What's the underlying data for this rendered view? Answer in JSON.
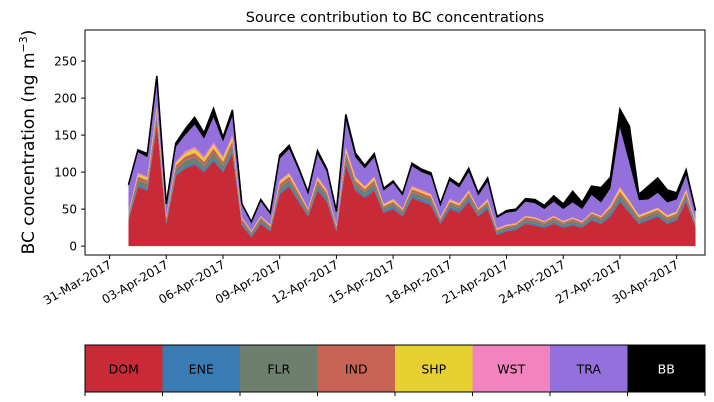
{
  "chart_data": {
    "type": "area",
    "stacked": true,
    "title": "Source contribution to BC concentrations",
    "ylabel": "BC concentration (ng m",
    "ylabel_unit_exponent": "−3",
    "ylabel_close": ")",
    "ylim": [
      -12,
      292
    ],
    "yticks": [
      0,
      50,
      100,
      150,
      200,
      250
    ],
    "xlim_days": [
      -1.3,
      31.5
    ],
    "xtick_days": [
      0,
      3,
      6,
      9,
      12,
      15,
      18,
      21,
      24,
      27,
      30
    ],
    "xtick_labels": [
      "31-Mar-2017",
      "03-Apr-2017",
      "06-Apr-2017",
      "09-Apr-2017",
      "12-Apr-2017",
      "15-Apr-2017",
      "18-Apr-2017",
      "21-Apr-2017",
      "24-Apr-2017",
      "27-Apr-2017",
      "30-Apr-2017"
    ],
    "x_days": [
      1.0,
      1.5,
      2.0,
      2.5,
      3.0,
      3.5,
      4.0,
      4.5,
      5.0,
      5.5,
      6.0,
      6.5,
      7.0,
      7.5,
      8.0,
      8.5,
      9.0,
      9.5,
      10.0,
      10.5,
      11.0,
      11.5,
      12.0,
      12.5,
      13.0,
      13.5,
      14.0,
      14.5,
      15.0,
      15.5,
      16.0,
      16.5,
      17.0,
      17.5,
      18.0,
      18.5,
      19.0,
      19.5,
      20.0,
      20.5,
      21.0,
      21.5,
      22.0,
      22.5,
      23.0,
      23.5,
      24.0,
      24.5,
      25.0,
      25.5,
      26.0,
      26.5,
      27.0,
      27.5,
      28.0,
      28.5,
      29.0,
      29.5,
      30.0,
      30.5,
      31.0
    ],
    "series": [
      {
        "name": "DOM",
        "color": "#c82b37",
        "values": [
          35,
          80,
          75,
          165,
          30,
          95,
          105,
          110,
          100,
          115,
          100,
          125,
          28,
          12,
          30,
          20,
          70,
          80,
          60,
          40,
          75,
          60,
          20,
          110,
          75,
          65,
          75,
          45,
          50,
          40,
          65,
          60,
          55,
          30,
          50,
          45,
          60,
          40,
          50,
          15,
          20,
          22,
          30,
          28,
          25,
          30,
          25,
          28,
          25,
          35,
          30,
          40,
          60,
          45,
          30,
          35,
          40,
          30,
          35,
          60,
          25
        ]
      },
      {
        "name": "ENE",
        "color": "#3a7bb5",
        "values": [
          2,
          3,
          3,
          3,
          2,
          3,
          3,
          3,
          3,
          3,
          3,
          3,
          2,
          2,
          2,
          2,
          3,
          3,
          3,
          2,
          3,
          3,
          2,
          3,
          3,
          3,
          3,
          2,
          3,
          2,
          3,
          3,
          3,
          2,
          3,
          3,
          3,
          2,
          3,
          2,
          2,
          2,
          2,
          2,
          2,
          2,
          2,
          2,
          2,
          2,
          2,
          3,
          3,
          3,
          2,
          2,
          2,
          2,
          2,
          3,
          2
        ]
      },
      {
        "name": "FLR",
        "color": "#6d7f6e",
        "values": [
          4,
          6,
          6,
          8,
          4,
          6,
          7,
          7,
          6,
          8,
          6,
          8,
          4,
          3,
          4,
          3,
          6,
          6,
          5,
          4,
          6,
          5,
          3,
          8,
          6,
          5,
          6,
          4,
          4,
          4,
          5,
          5,
          5,
          3,
          4,
          4,
          5,
          4,
          4,
          3,
          3,
          3,
          4,
          4,
          3,
          4,
          3,
          4,
          3,
          4,
          4,
          5,
          6,
          5,
          4,
          4,
          4,
          4,
          4,
          5,
          3
        ]
      },
      {
        "name": "IND",
        "color": "#c86454",
        "values": [
          3,
          5,
          5,
          6,
          3,
          5,
          6,
          6,
          5,
          6,
          5,
          6,
          3,
          2,
          3,
          2,
          5,
          5,
          4,
          3,
          5,
          4,
          2,
          6,
          5,
          4,
          5,
          3,
          3,
          3,
          4,
          4,
          4,
          2,
          3,
          3,
          4,
          3,
          3,
          2,
          2,
          2,
          3,
          3,
          2,
          3,
          2,
          3,
          2,
          3,
          3,
          4,
          5,
          4,
          3,
          3,
          3,
          3,
          3,
          4,
          2
        ]
      },
      {
        "name": "SHP",
        "color": "#e6d12f",
        "values": [
          1,
          3,
          3,
          5,
          1,
          3,
          4,
          5,
          4,
          5,
          4,
          5,
          1,
          1,
          1,
          1,
          3,
          3,
          2,
          1,
          3,
          2,
          1,
          4,
          3,
          2,
          3,
          2,
          2,
          1,
          2,
          2,
          2,
          1,
          2,
          2,
          2,
          1,
          2,
          1,
          1,
          1,
          1,
          1,
          1,
          1,
          1,
          1,
          1,
          1,
          1,
          2,
          4,
          3,
          2,
          2,
          2,
          2,
          2,
          3,
          1
        ]
      },
      {
        "name": "WST",
        "color": "#f183bf",
        "values": [
          1,
          2,
          2,
          3,
          1,
          2,
          3,
          3,
          3,
          3,
          3,
          3,
          1,
          1,
          1,
          1,
          2,
          2,
          2,
          1,
          2,
          2,
          1,
          3,
          2,
          2,
          2,
          1,
          2,
          1,
          2,
          2,
          2,
          1,
          2,
          1,
          2,
          1,
          2,
          1,
          1,
          1,
          1,
          1,
          1,
          1,
          1,
          1,
          1,
          1,
          1,
          2,
          2,
          2,
          1,
          1,
          1,
          1,
          1,
          2,
          1
        ]
      },
      {
        "name": "TRA",
        "color": "#9370db",
        "values": [
          34,
          28,
          26,
          30,
          14,
          20,
          22,
          30,
          24,
          34,
          20,
          26,
          16,
          11,
          19,
          14,
          29,
          32,
          26,
          19,
          30,
          24,
          16,
          36,
          26,
          24,
          26,
          18,
          21,
          17,
          27,
          24,
          24,
          15,
          24,
          21,
          24,
          17,
          23,
          14,
          16,
          16,
          19,
          19,
          16,
          19,
          16,
          20,
          16,
          23,
          18,
          22,
          80,
          50,
          20,
          16,
          20,
          17,
          16,
          18,
          12
        ]
      },
      {
        "name": "BB",
        "color": "#000000",
        "values": [
          3,
          3,
          5,
          10,
          2,
          5,
          8,
          10,
          8,
          12,
          6,
          8,
          2,
          1,
          3,
          2,
          5,
          5,
          4,
          3,
          5,
          4,
          2,
          8,
          6,
          4,
          5,
          3,
          3,
          3,
          4,
          4,
          4,
          3,
          4,
          4,
          5,
          4,
          5,
          2,
          3,
          3,
          4,
          5,
          5,
          8,
          7,
          15,
          9,
          12,
          20,
          15,
          25,
          50,
          8,
          18,
          20,
          17,
          9,
          8,
          2
        ]
      }
    ]
  },
  "legend": {
    "items": [
      {
        "label": "DOM",
        "color": "#c82b37",
        "text_color": "#000000"
      },
      {
        "label": "ENE",
        "color": "#3a7bb5",
        "text_color": "#000000"
      },
      {
        "label": "FLR",
        "color": "#6d7f6e",
        "text_color": "#000000"
      },
      {
        "label": "IND",
        "color": "#c86454",
        "text_color": "#000000"
      },
      {
        "label": "SHP",
        "color": "#e6d12f",
        "text_color": "#000000"
      },
      {
        "label": "WST",
        "color": "#f183bf",
        "text_color": "#000000"
      },
      {
        "label": "TRA",
        "color": "#9370db",
        "text_color": "#000000"
      },
      {
        "label": "BB",
        "color": "#000000",
        "text_color": "#ffffff"
      }
    ]
  }
}
